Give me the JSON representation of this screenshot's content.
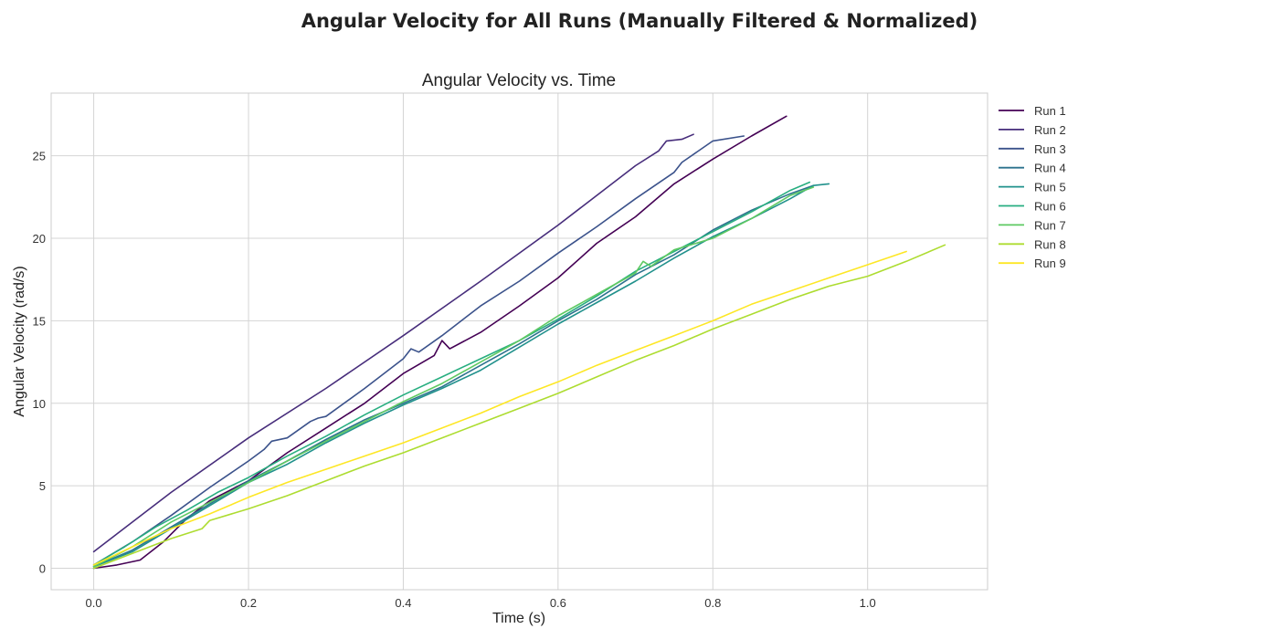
{
  "chart_data": {
    "type": "line",
    "suptitle": "Angular Velocity for All Runs (Manually Filtered & Normalized)",
    "title": "Angular Velocity vs. Time",
    "xlabel": "Time (s)",
    "ylabel": "Angular Velocity (rad/s)",
    "xlim": [
      -0.055,
      1.155
    ],
    "ylim": [
      -1.3,
      28.8
    ],
    "xticks": [
      0.0,
      0.2,
      0.4,
      0.6,
      0.8,
      1.0
    ],
    "xtick_labels": [
      "0.0",
      "0.2",
      "0.4",
      "0.6",
      "0.8",
      "1.0"
    ],
    "yticks": [
      0,
      5,
      10,
      15,
      20,
      25
    ],
    "ytick_labels": [
      "0",
      "5",
      "10",
      "15",
      "20",
      "25"
    ],
    "grid": true,
    "legend": "outside-right-top",
    "series": [
      {
        "name": "Run 1",
        "color": "#440154",
        "x": [
          0.0,
          0.03,
          0.06,
          0.09,
          0.12,
          0.15,
          0.2,
          0.25,
          0.3,
          0.35,
          0.4,
          0.44,
          0.45,
          0.46,
          0.5,
          0.55,
          0.6,
          0.65,
          0.7,
          0.75,
          0.8,
          0.85,
          0.895
        ],
        "y": [
          0.0,
          0.2,
          0.5,
          1.6,
          3.0,
          4.1,
          5.3,
          7.0,
          8.5,
          10.0,
          11.8,
          12.9,
          13.8,
          13.3,
          14.3,
          15.9,
          17.6,
          19.7,
          21.3,
          23.3,
          24.8,
          26.2,
          27.4
        ]
      },
      {
        "name": "Run 2",
        "color": "#472d7b",
        "x": [
          0.0,
          0.1,
          0.2,
          0.3,
          0.4,
          0.5,
          0.6,
          0.7,
          0.73,
          0.74,
          0.76,
          0.775
        ],
        "y": [
          1.0,
          4.6,
          7.9,
          10.9,
          14.1,
          17.4,
          20.8,
          24.4,
          25.3,
          25.9,
          26.0,
          26.3
        ]
      },
      {
        "name": "Run 3",
        "color": "#3b528b",
        "x": [
          0.0,
          0.05,
          0.1,
          0.15,
          0.2,
          0.22,
          0.23,
          0.25,
          0.28,
          0.29,
          0.3,
          0.35,
          0.4,
          0.41,
          0.42,
          0.45,
          0.5,
          0.55,
          0.6,
          0.65,
          0.7,
          0.75,
          0.76,
          0.8,
          0.84
        ],
        "y": [
          0.2,
          1.6,
          3.2,
          4.9,
          6.5,
          7.2,
          7.7,
          7.9,
          8.9,
          9.1,
          9.2,
          10.9,
          12.7,
          13.3,
          13.1,
          14.1,
          15.9,
          17.4,
          19.1,
          20.7,
          22.4,
          24.0,
          24.6,
          25.9,
          26.2
        ]
      },
      {
        "name": "Run 4",
        "color": "#2c728e",
        "x": [
          0.0,
          0.05,
          0.1,
          0.15,
          0.2,
          0.25,
          0.3,
          0.35,
          0.4,
          0.45,
          0.5,
          0.55,
          0.6,
          0.65,
          0.7,
          0.75,
          0.8,
          0.85,
          0.9,
          0.93
        ],
        "y": [
          0.1,
          1.1,
          2.5,
          3.9,
          5.3,
          6.5,
          7.8,
          9.0,
          10.0,
          11.0,
          12.3,
          13.6,
          15.0,
          16.3,
          17.8,
          19.0,
          20.5,
          21.7,
          22.7,
          23.2
        ]
      },
      {
        "name": "Run 5",
        "color": "#21918c",
        "x": [
          0.0,
          0.05,
          0.1,
          0.15,
          0.2,
          0.25,
          0.3,
          0.35,
          0.4,
          0.45,
          0.5,
          0.55,
          0.6,
          0.65,
          0.7,
          0.75,
          0.8,
          0.85,
          0.9,
          0.93,
          0.95
        ],
        "y": [
          0.1,
          1.0,
          2.4,
          3.8,
          5.2,
          6.3,
          7.6,
          8.8,
          9.9,
          10.9,
          12.0,
          13.4,
          14.8,
          16.1,
          17.4,
          18.8,
          20.1,
          21.2,
          22.4,
          23.2,
          23.3
        ]
      },
      {
        "name": "Run 6",
        "color": "#28ae80",
        "x": [
          0.0,
          0.04,
          0.08,
          0.12,
          0.16,
          0.2,
          0.25,
          0.3,
          0.35,
          0.4,
          0.45,
          0.5,
          0.55,
          0.6,
          0.65,
          0.7,
          0.75,
          0.8,
          0.85,
          0.9,
          0.925
        ],
        "y": [
          0.2,
          1.3,
          2.5,
          3.5,
          4.6,
          5.5,
          6.8,
          8.0,
          9.3,
          10.5,
          11.6,
          12.7,
          13.8,
          15.1,
          16.5,
          18.0,
          19.2,
          20.4,
          21.6,
          22.9,
          23.4
        ]
      },
      {
        "name": "Run 7",
        "color": "#5ec962",
        "x": [
          0.0,
          0.05,
          0.1,
          0.15,
          0.2,
          0.25,
          0.3,
          0.35,
          0.4,
          0.45,
          0.5,
          0.55,
          0.6,
          0.65,
          0.7,
          0.71,
          0.72,
          0.75,
          0.8,
          0.85,
          0.9,
          0.93
        ],
        "y": [
          0.1,
          1.3,
          2.8,
          4.0,
          5.2,
          6.5,
          7.7,
          8.9,
          10.1,
          11.2,
          12.5,
          13.8,
          15.3,
          16.6,
          17.9,
          18.6,
          18.3,
          19.3,
          20.0,
          21.2,
          22.6,
          23.1
        ]
      },
      {
        "name": "Run 8",
        "color": "#addc30",
        "x": [
          0.0,
          0.05,
          0.1,
          0.14,
          0.15,
          0.2,
          0.25,
          0.3,
          0.35,
          0.4,
          0.45,
          0.5,
          0.55,
          0.6,
          0.65,
          0.7,
          0.75,
          0.8,
          0.85,
          0.9,
          0.95,
          1.0,
          1.05,
          1.1
        ],
        "y": [
          0.0,
          0.9,
          1.8,
          2.4,
          2.9,
          3.6,
          4.4,
          5.3,
          6.2,
          7.0,
          7.9,
          8.8,
          9.7,
          10.6,
          11.6,
          12.6,
          13.5,
          14.5,
          15.4,
          16.3,
          17.1,
          17.7,
          18.6,
          19.6
        ]
      },
      {
        "name": "Run 9",
        "color": "#fde725",
        "x": [
          0.0,
          0.05,
          0.1,
          0.15,
          0.2,
          0.25,
          0.3,
          0.35,
          0.4,
          0.45,
          0.5,
          0.55,
          0.6,
          0.65,
          0.7,
          0.75,
          0.8,
          0.85,
          0.9,
          0.95,
          1.0,
          1.05
        ],
        "y": [
          0.2,
          1.3,
          2.4,
          3.3,
          4.3,
          5.2,
          6.0,
          6.8,
          7.6,
          8.5,
          9.4,
          10.4,
          11.3,
          12.3,
          13.2,
          14.1,
          15.0,
          16.0,
          16.8,
          17.6,
          18.4,
          19.2
        ]
      }
    ]
  }
}
